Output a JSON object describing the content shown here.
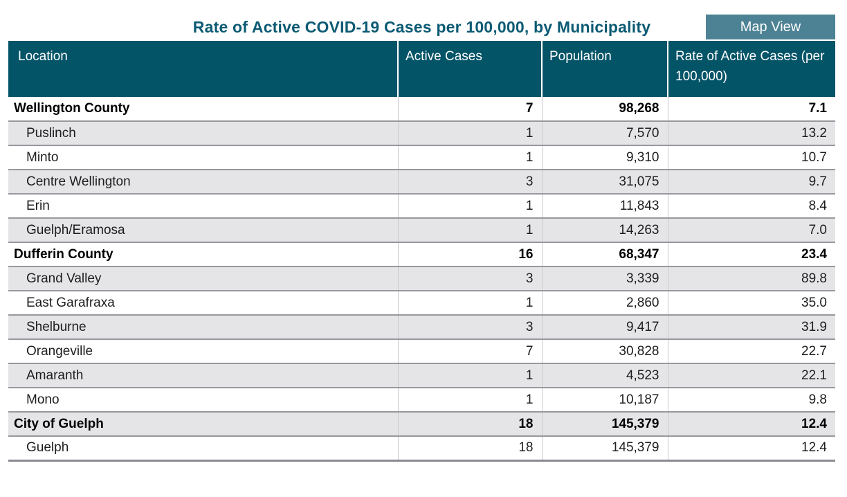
{
  "title": "Rate of Active COVID-19 Cases per 100,000, by Municipality",
  "map_view_button": "Map View",
  "colors": {
    "header_bg": "#045468",
    "button_bg": "#4D8294",
    "title_text": "#0B5A73",
    "stripe_bg": "#E5E5E7",
    "row_border": "#97979D",
    "column_divider": "#CBCBCF"
  },
  "table": {
    "columns": [
      "Location",
      "Active Cases",
      "Population",
      "Rate of Active Cases (per 100,000)"
    ],
    "rows": [
      {
        "type": "county",
        "location": "Wellington County",
        "active_cases": "7",
        "population": "98,268",
        "rate": "7.1"
      },
      {
        "type": "municipality",
        "location": "Puslinch",
        "active_cases": "1",
        "population": "7,570",
        "rate": "13.2"
      },
      {
        "type": "municipality",
        "location": "Minto",
        "active_cases": "1",
        "population": "9,310",
        "rate": "10.7"
      },
      {
        "type": "municipality",
        "location": "Centre Wellington",
        "active_cases": "3",
        "population": "31,075",
        "rate": "9.7"
      },
      {
        "type": "municipality",
        "location": "Erin",
        "active_cases": "1",
        "population": "11,843",
        "rate": "8.4"
      },
      {
        "type": "municipality",
        "location": "Guelph/Eramosa",
        "active_cases": "1",
        "population": "14,263",
        "rate": "7.0"
      },
      {
        "type": "county",
        "location": "Dufferin County",
        "active_cases": "16",
        "population": "68,347",
        "rate": "23.4"
      },
      {
        "type": "municipality",
        "location": "Grand Valley",
        "active_cases": "3",
        "population": "3,339",
        "rate": "89.8"
      },
      {
        "type": "municipality",
        "location": "East Garafraxa",
        "active_cases": "1",
        "population": "2,860",
        "rate": "35.0"
      },
      {
        "type": "municipality",
        "location": "Shelburne",
        "active_cases": "3",
        "population": "9,417",
        "rate": "31.9"
      },
      {
        "type": "municipality",
        "location": "Orangeville",
        "active_cases": "7",
        "population": "30,828",
        "rate": "22.7"
      },
      {
        "type": "municipality",
        "location": "Amaranth",
        "active_cases": "1",
        "population": "4,523",
        "rate": "22.1"
      },
      {
        "type": "municipality",
        "location": "Mono",
        "active_cases": "1",
        "population": "10,187",
        "rate": "9.8"
      },
      {
        "type": "county",
        "location": "City of Guelph",
        "active_cases": "18",
        "population": "145,379",
        "rate": "12.4"
      },
      {
        "type": "municipality",
        "location": "Guelph",
        "active_cases": "18",
        "population": "145,379",
        "rate": "12.4"
      }
    ]
  }
}
